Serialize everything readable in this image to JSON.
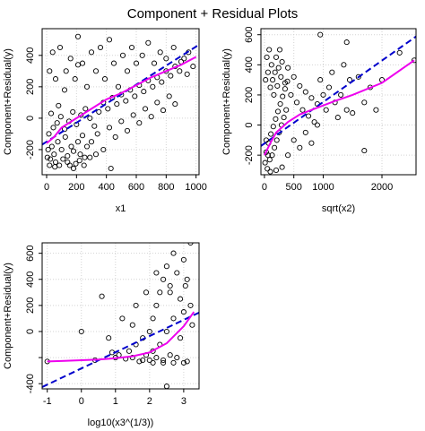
{
  "title": "Component + Residual Plots",
  "colors": {
    "points": "#000000",
    "smooth": "#ee00ee",
    "fit": "#0000cc",
    "grid": "#d3d3d3",
    "background": "#ffffff"
  },
  "chart_data": [
    {
      "type": "scatter",
      "xlabel": "x1",
      "ylabel": "Component+Residual(y)",
      "xlim": [
        -30,
        1020
      ],
      "ylim": [
        -360,
        570
      ],
      "xticks": [
        0,
        200,
        400,
        600,
        800,
        1000
      ],
      "yticks": [
        -200,
        0,
        200,
        400
      ],
      "grid": true,
      "points_note": "approximately 500 open-circle residual points",
      "points": [
        [
          5,
          -250
        ],
        [
          20,
          -300
        ],
        [
          35,
          -180
        ],
        [
          50,
          -230
        ],
        [
          60,
          -280
        ],
        [
          75,
          -150
        ],
        [
          85,
          -300
        ],
        [
          100,
          -200
        ],
        [
          110,
          -260
        ],
        [
          125,
          -120
        ],
        [
          140,
          -240
        ],
        [
          155,
          -300
        ],
        [
          165,
          -180
        ],
        [
          180,
          -210
        ],
        [
          195,
          -290
        ],
        [
          210,
          -150
        ],
        [
          225,
          -230
        ],
        [
          240,
          -110
        ],
        [
          255,
          -250
        ],
        [
          270,
          -180
        ],
        [
          15,
          -100
        ],
        [
          45,
          -60
        ],
        [
          70,
          -30
        ],
        [
          95,
          10
        ],
        [
          120,
          -70
        ],
        [
          150,
          -20
        ],
        [
          175,
          40
        ],
        [
          200,
          -40
        ],
        [
          230,
          20
        ],
        [
          260,
          60
        ],
        [
          290,
          0
        ],
        [
          320,
          -50
        ],
        [
          350,
          40
        ],
        [
          380,
          100
        ],
        [
          410,
          60
        ],
        [
          440,
          130
        ],
        [
          470,
          90
        ],
        [
          500,
          150
        ],
        [
          530,
          110
        ],
        [
          560,
          180
        ],
        [
          590,
          140
        ],
        [
          620,
          210
        ],
        [
          650,
          170
        ],
        [
          680,
          240
        ],
        [
          710,
          200
        ],
        [
          740,
          260
        ],
        [
          770,
          230
        ],
        [
          800,
          300
        ],
        [
          830,
          270
        ],
        [
          860,
          330
        ],
        [
          890,
          300
        ],
        [
          920,
          380
        ],
        [
          950,
          420
        ],
        [
          980,
          330
        ],
        [
          20,
          300
        ],
        [
          40,
          420
        ],
        [
          60,
          250
        ],
        [
          90,
          450
        ],
        [
          130,
          300
        ],
        [
          160,
          380
        ],
        [
          190,
          250
        ],
        [
          210,
          520
        ],
        [
          240,
          350
        ],
        [
          270,
          200
        ],
        [
          300,
          420
        ],
        [
          330,
          300
        ],
        [
          360,
          450
        ],
        [
          390,
          250
        ],
        [
          420,
          500
        ],
        [
          450,
          350
        ],
        [
          480,
          200
        ],
        [
          510,
          400
        ],
        [
          540,
          300
        ],
        [
          570,
          450
        ],
        [
          600,
          350
        ],
        [
          640,
          400
        ],
        [
          680,
          480
        ],
        [
          720,
          350
        ],
        [
          760,
          420
        ],
        [
          800,
          380
        ],
        [
          850,
          450
        ],
        [
          900,
          360
        ],
        [
          940,
          280
        ],
        [
          300,
          -150
        ],
        [
          340,
          -100
        ],
        [
          380,
          -200
        ],
        [
          420,
          -60
        ],
        [
          460,
          -120
        ],
        [
          500,
          -20
        ],
        [
          540,
          -80
        ],
        [
          580,
          20
        ],
        [
          620,
          -30
        ],
        [
          660,
          60
        ],
        [
          700,
          10
        ],
        [
          740,
          100
        ],
        [
          780,
          50
        ],
        [
          820,
          140
        ],
        [
          860,
          90
        ],
        [
          430,
          -320
        ],
        [
          330,
          -230
        ],
        [
          210,
          340
        ],
        [
          120,
          180
        ],
        [
          80,
          80
        ],
        [
          30,
          30
        ],
        [
          10,
          -200
        ],
        [
          25,
          -260
        ],
        [
          55,
          -310
        ],
        [
          140,
          -280
        ],
        [
          180,
          -320
        ],
        [
          220,
          -270
        ],
        [
          250,
          -300
        ],
        [
          290,
          -250
        ]
      ],
      "fit": {
        "x": [
          -30,
          1020
        ],
        "y": [
          -168,
          468
        ]
      },
      "smooth": {
        "x": [
          0,
          50,
          100,
          200,
          300,
          400,
          500,
          600,
          700,
          800,
          900,
          1000
        ],
        "y": [
          -160,
          -120,
          -60,
          0,
          60,
          120,
          160,
          210,
          260,
          300,
          340,
          390
        ]
      }
    },
    {
      "type": "scatter",
      "xlabel": "sqrt(x2)",
      "ylabel": "Component+Residual(y)",
      "xlim": [
        -60,
        2580
      ],
      "ylim": [
        -330,
        640
      ],
      "xticks": [
        0,
        500,
        1000,
        2000
      ],
      "yticks": [
        -200,
        0,
        200,
        400,
        600
      ],
      "grid": true,
      "points_note": "approximately 500 open-circle residual points",
      "points": [
        [
          10,
          -250
        ],
        [
          30,
          -180
        ],
        [
          50,
          -290
        ],
        [
          70,
          -120
        ],
        [
          90,
          -230
        ],
        [
          110,
          -60
        ],
        [
          130,
          -200
        ],
        [
          150,
          -10
        ],
        [
          170,
          -150
        ],
        [
          190,
          40
        ],
        [
          210,
          -100
        ],
        [
          230,
          90
        ],
        [
          250,
          -50
        ],
        [
          270,
          140
        ],
        [
          290,
          0
        ],
        [
          310,
          190
        ],
        [
          330,
          50
        ],
        [
          350,
          240
        ],
        [
          370,
          100
        ],
        [
          390,
          290
        ],
        [
          20,
          300
        ],
        [
          40,
          450
        ],
        [
          60,
          350
        ],
        [
          80,
          500
        ],
        [
          100,
          250
        ],
        [
          120,
          400
        ],
        [
          140,
          300
        ],
        [
          160,
          200
        ],
        [
          180,
          350
        ],
        [
          200,
          450
        ],
        [
          220,
          260
        ],
        [
          240,
          380
        ],
        [
          260,
          500
        ],
        [
          280,
          320
        ],
        [
          300,
          420
        ],
        [
          350,
          280
        ],
        [
          400,
          380
        ],
        [
          450,
          200
        ],
        [
          500,
          320
        ],
        [
          550,
          150
        ],
        [
          600,
          260
        ],
        [
          650,
          100
        ],
        [
          700,
          220
        ],
        [
          750,
          60
        ],
        [
          800,
          180
        ],
        [
          850,
          20
        ],
        [
          900,
          140
        ],
        [
          950,
          300
        ],
        [
          1000,
          200
        ],
        [
          1050,
          100
        ],
        [
          1100,
          250
        ],
        [
          1150,
          350
        ],
        [
          1200,
          150
        ],
        [
          1250,
          50
        ],
        [
          1300,
          200
        ],
        [
          1350,
          400
        ],
        [
          1400,
          100
        ],
        [
          1450,
          300
        ],
        [
          1500,
          80
        ],
        [
          1600,
          320
        ],
        [
          1700,
          150
        ],
        [
          1800,
          250
        ],
        [
          1900,
          100
        ],
        [
          2000,
          300
        ],
        [
          2300,
          480
        ],
        [
          2550,
          430
        ],
        [
          1700,
          -170
        ],
        [
          1400,
          550
        ],
        [
          950,
          600
        ],
        [
          400,
          -200
        ],
        [
          500,
          -100
        ],
        [
          600,
          -150
        ],
        [
          700,
          -50
        ],
        [
          800,
          -120
        ],
        [
          900,
          0
        ],
        [
          300,
          -280
        ],
        [
          200,
          -300
        ],
        [
          100,
          -310
        ],
        [
          60,
          -200
        ],
        [
          30,
          -100
        ]
      ],
      "fit": {
        "x": [
          -60,
          2580
        ],
        "y": [
          -139,
          588
        ]
      },
      "smooth": {
        "x": [
          0,
          100,
          200,
          400,
          600,
          800,
          1000,
          1200,
          1500,
          2000,
          2550
        ],
        "y": [
          -200,
          -120,
          -50,
          20,
          70,
          100,
          130,
          160,
          200,
          280,
          430
        ]
      }
    },
    {
      "type": "scatter",
      "xlabel": "log10(x3^(1/3))",
      "ylabel": "Component+Residual(y)",
      "xlim": [
        -1.15,
        3.45
      ],
      "ylim": [
        -440,
        680
      ],
      "xticks": [
        -1,
        0,
        1,
        2,
        3
      ],
      "yticks": [
        -400,
        -200,
        0,
        200,
        400,
        600
      ],
      "ytick_labels": [
        "-400",
        "",
        "0",
        "200",
        "400",
        "600"
      ],
      "grid": true,
      "points_note": "approximately 500 open-circle residual points",
      "points": [
        [
          -1.0,
          -230
        ],
        [
          0.0,
          0
        ],
        [
          0.4,
          -220
        ],
        [
          0.6,
          270
        ],
        [
          0.8,
          -50
        ],
        [
          1.0,
          -200
        ],
        [
          1.1,
          -180
        ],
        [
          1.3,
          -210
        ],
        [
          1.4,
          -150
        ],
        [
          1.5,
          -200
        ],
        [
          1.6,
          -100
        ],
        [
          1.7,
          -230
        ],
        [
          1.8,
          -50
        ],
        [
          1.9,
          -180
        ],
        [
          2.0,
          0
        ],
        [
          2.0,
          -220
        ],
        [
          2.1,
          100
        ],
        [
          2.1,
          -150
        ],
        [
          2.2,
          200
        ],
        [
          2.2,
          -200
        ],
        [
          2.3,
          300
        ],
        [
          2.3,
          -100
        ],
        [
          2.4,
          400
        ],
        [
          2.4,
          -220
        ],
        [
          2.5,
          500
        ],
        [
          2.5,
          0
        ],
        [
          2.6,
          350
        ],
        [
          2.6,
          -180
        ],
        [
          2.7,
          600
        ],
        [
          2.7,
          100
        ],
        [
          2.8,
          450
        ],
        [
          2.8,
          -200
        ],
        [
          2.9,
          250
        ],
        [
          2.9,
          -50
        ],
        [
          3.0,
          550
        ],
        [
          3.0,
          150
        ],
        [
          3.1,
          400
        ],
        [
          3.1,
          -230
        ],
        [
          3.2,
          680
        ],
        [
          3.2,
          200
        ],
        [
          3.25,
          50
        ],
        [
          2.5,
          -420
        ],
        [
          1.5,
          50
        ],
        [
          1.2,
          100
        ],
        [
          0.9,
          -160
        ],
        [
          1.6,
          200
        ],
        [
          1.9,
          300
        ],
        [
          2.2,
          450
        ],
        [
          2.6,
          300
        ],
        [
          3.05,
          350
        ],
        [
          1.8,
          -220
        ],
        [
          2.1,
          -240
        ],
        [
          2.4,
          -240
        ],
        [
          2.7,
          -240
        ],
        [
          3.0,
          -240
        ]
      ],
      "fit": {
        "x": [
          -1.15,
          3.45
        ],
        "y": [
          -426,
          145
        ]
      },
      "smooth": {
        "x": [
          -1.0,
          -0.5,
          0.0,
          0.5,
          1.0,
          1.5,
          2.0,
          2.5,
          3.0,
          3.3
        ],
        "y": [
          -230,
          -225,
          -220,
          -215,
          -205,
          -190,
          -160,
          -90,
          40,
          150
        ]
      }
    }
  ]
}
